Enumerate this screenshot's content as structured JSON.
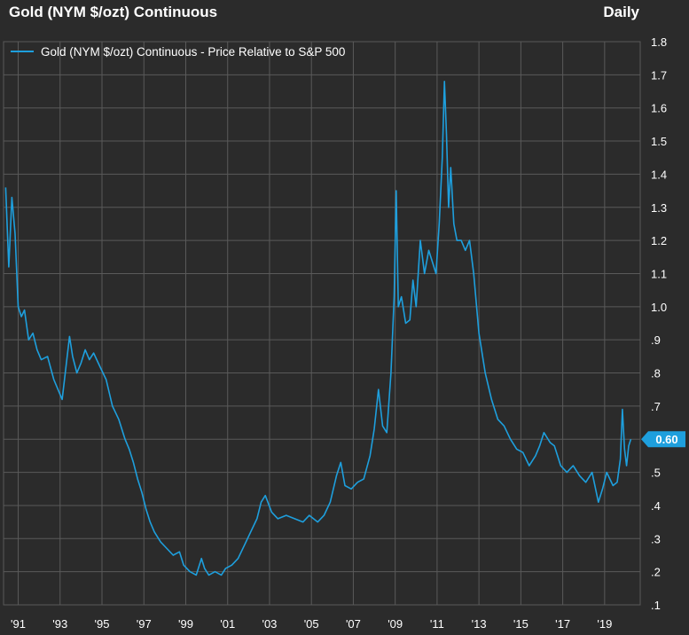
{
  "header": {
    "title": "Gold (NYM $/ozt) Continuous",
    "frequency": "Daily"
  },
  "colors": {
    "background": "#2b2b2b",
    "grid": "#5a5a5a",
    "series": "#1e9fdd",
    "text": "#ffffff"
  },
  "chart_data": {
    "type": "line",
    "title": "Gold (NYM $/ozt) Continuous",
    "xlabel": "",
    "ylabel": "",
    "legend": [
      "Gold (NYM $/ozt) Continuous - Price Relative to S&P 500"
    ],
    "legend_position": "top-left",
    "grid": true,
    "x_tick_labels": [
      "'91",
      "'93",
      "'95",
      "'97",
      "'99",
      "'01",
      "'03",
      "'05",
      "'07",
      "'09",
      "'11",
      "'13",
      "'15",
      "'17",
      "'19"
    ],
    "x_tick_years": [
      1991,
      1993,
      1995,
      1997,
      1999,
      2001,
      2003,
      2005,
      2007,
      2009,
      2011,
      2013,
      2015,
      2017,
      2019
    ],
    "y_tick_labels": [
      ".1",
      ".2",
      ".3",
      ".4",
      ".5",
      ".6",
      ".7",
      ".8",
      ".9",
      "1.0",
      "1.1",
      "1.2",
      "1.3",
      "1.4",
      "1.5",
      "1.6",
      "1.7",
      "1.8"
    ],
    "y_ticks": [
      0.1,
      0.2,
      0.3,
      0.4,
      0.5,
      0.6,
      0.7,
      0.8,
      0.9,
      1.0,
      1.1,
      1.2,
      1.3,
      1.4,
      1.5,
      1.6,
      1.7,
      1.8
    ],
    "xlim": [
      1990.3,
      2020.7
    ],
    "ylim": [
      0.1,
      1.8
    ],
    "last_value_label": "0.60",
    "last_value": 0.6,
    "series": [
      {
        "name": "Gold (NYM $/ozt) Continuous - Price Relative to S&P 500",
        "points": [
          [
            1990.4,
            1.36
          ],
          [
            1990.55,
            1.12
          ],
          [
            1990.7,
            1.33
          ],
          [
            1990.85,
            1.22
          ],
          [
            1991.0,
            1.0
          ],
          [
            1991.15,
            0.97
          ],
          [
            1991.3,
            0.99
          ],
          [
            1991.5,
            0.9
          ],
          [
            1991.7,
            0.92
          ],
          [
            1991.9,
            0.87
          ],
          [
            1992.1,
            0.84
          ],
          [
            1992.4,
            0.85
          ],
          [
            1992.7,
            0.78
          ],
          [
            1992.9,
            0.75
          ],
          [
            1993.1,
            0.72
          ],
          [
            1993.3,
            0.83
          ],
          [
            1993.45,
            0.91
          ],
          [
            1993.6,
            0.85
          ],
          [
            1993.8,
            0.8
          ],
          [
            1994.0,
            0.83
          ],
          [
            1994.2,
            0.87
          ],
          [
            1994.4,
            0.84
          ],
          [
            1994.6,
            0.86
          ],
          [
            1994.9,
            0.82
          ],
          [
            1995.2,
            0.78
          ],
          [
            1995.5,
            0.7
          ],
          [
            1995.8,
            0.66
          ],
          [
            1996.1,
            0.6
          ],
          [
            1996.3,
            0.57
          ],
          [
            1996.5,
            0.53
          ],
          [
            1996.7,
            0.48
          ],
          [
            1996.9,
            0.44
          ],
          [
            1997.1,
            0.39
          ],
          [
            1997.3,
            0.35
          ],
          [
            1997.5,
            0.32
          ],
          [
            1997.8,
            0.29
          ],
          [
            1998.1,
            0.27
          ],
          [
            1998.4,
            0.25
          ],
          [
            1998.7,
            0.26
          ],
          [
            1998.9,
            0.22
          ],
          [
            1999.2,
            0.2
          ],
          [
            1999.5,
            0.19
          ],
          [
            1999.75,
            0.24
          ],
          [
            1999.9,
            0.21
          ],
          [
            2000.1,
            0.19
          ],
          [
            2000.4,
            0.2
          ],
          [
            2000.7,
            0.19
          ],
          [
            2000.9,
            0.21
          ],
          [
            2001.2,
            0.22
          ],
          [
            2001.5,
            0.24
          ],
          [
            2001.8,
            0.28
          ],
          [
            2002.1,
            0.32
          ],
          [
            2002.4,
            0.36
          ],
          [
            2002.6,
            0.41
          ],
          [
            2002.8,
            0.43
          ],
          [
            2003.1,
            0.38
          ],
          [
            2003.4,
            0.36
          ],
          [
            2003.8,
            0.37
          ],
          [
            2004.2,
            0.36
          ],
          [
            2004.6,
            0.35
          ],
          [
            2004.9,
            0.37
          ],
          [
            2005.3,
            0.35
          ],
          [
            2005.6,
            0.37
          ],
          [
            2005.9,
            0.41
          ],
          [
            2006.2,
            0.49
          ],
          [
            2006.4,
            0.53
          ],
          [
            2006.6,
            0.46
          ],
          [
            2006.9,
            0.45
          ],
          [
            2007.2,
            0.47
          ],
          [
            2007.5,
            0.48
          ],
          [
            2007.8,
            0.55
          ],
          [
            2008.0,
            0.63
          ],
          [
            2008.2,
            0.75
          ],
          [
            2008.4,
            0.64
          ],
          [
            2008.6,
            0.62
          ],
          [
            2008.8,
            0.8
          ],
          [
            2008.95,
            1.03
          ],
          [
            2009.05,
            1.35
          ],
          [
            2009.15,
            1.0
          ],
          [
            2009.3,
            1.03
          ],
          [
            2009.5,
            0.95
          ],
          [
            2009.7,
            0.96
          ],
          [
            2009.85,
            1.08
          ],
          [
            2010.0,
            1.0
          ],
          [
            2010.2,
            1.2
          ],
          [
            2010.4,
            1.1
          ],
          [
            2010.6,
            1.17
          ],
          [
            2010.8,
            1.13
          ],
          [
            2010.95,
            1.1
          ],
          [
            2011.1,
            1.25
          ],
          [
            2011.25,
            1.45
          ],
          [
            2011.35,
            1.68
          ],
          [
            2011.45,
            1.52
          ],
          [
            2011.55,
            1.3
          ],
          [
            2011.65,
            1.42
          ],
          [
            2011.8,
            1.25
          ],
          [
            2011.95,
            1.2
          ],
          [
            2012.15,
            1.2
          ],
          [
            2012.35,
            1.17
          ],
          [
            2012.55,
            1.2
          ],
          [
            2012.75,
            1.1
          ],
          [
            2013.0,
            0.92
          ],
          [
            2013.3,
            0.8
          ],
          [
            2013.6,
            0.72
          ],
          [
            2013.9,
            0.66
          ],
          [
            2014.2,
            0.64
          ],
          [
            2014.5,
            0.6
          ],
          [
            2014.8,
            0.57
          ],
          [
            2015.1,
            0.56
          ],
          [
            2015.4,
            0.52
          ],
          [
            2015.7,
            0.55
          ],
          [
            2015.9,
            0.58
          ],
          [
            2016.1,
            0.62
          ],
          [
            2016.4,
            0.59
          ],
          [
            2016.6,
            0.58
          ],
          [
            2016.9,
            0.52
          ],
          [
            2017.2,
            0.5
          ],
          [
            2017.5,
            0.52
          ],
          [
            2017.8,
            0.49
          ],
          [
            2018.1,
            0.47
          ],
          [
            2018.4,
            0.5
          ],
          [
            2018.7,
            0.41
          ],
          [
            2018.9,
            0.45
          ],
          [
            2019.1,
            0.5
          ],
          [
            2019.4,
            0.46
          ],
          [
            2019.6,
            0.47
          ],
          [
            2019.75,
            0.54
          ],
          [
            2019.85,
            0.69
          ],
          [
            2019.95,
            0.57
          ],
          [
            2020.05,
            0.52
          ],
          [
            2020.15,
            0.58
          ],
          [
            2020.25,
            0.6
          ]
        ]
      }
    ]
  }
}
